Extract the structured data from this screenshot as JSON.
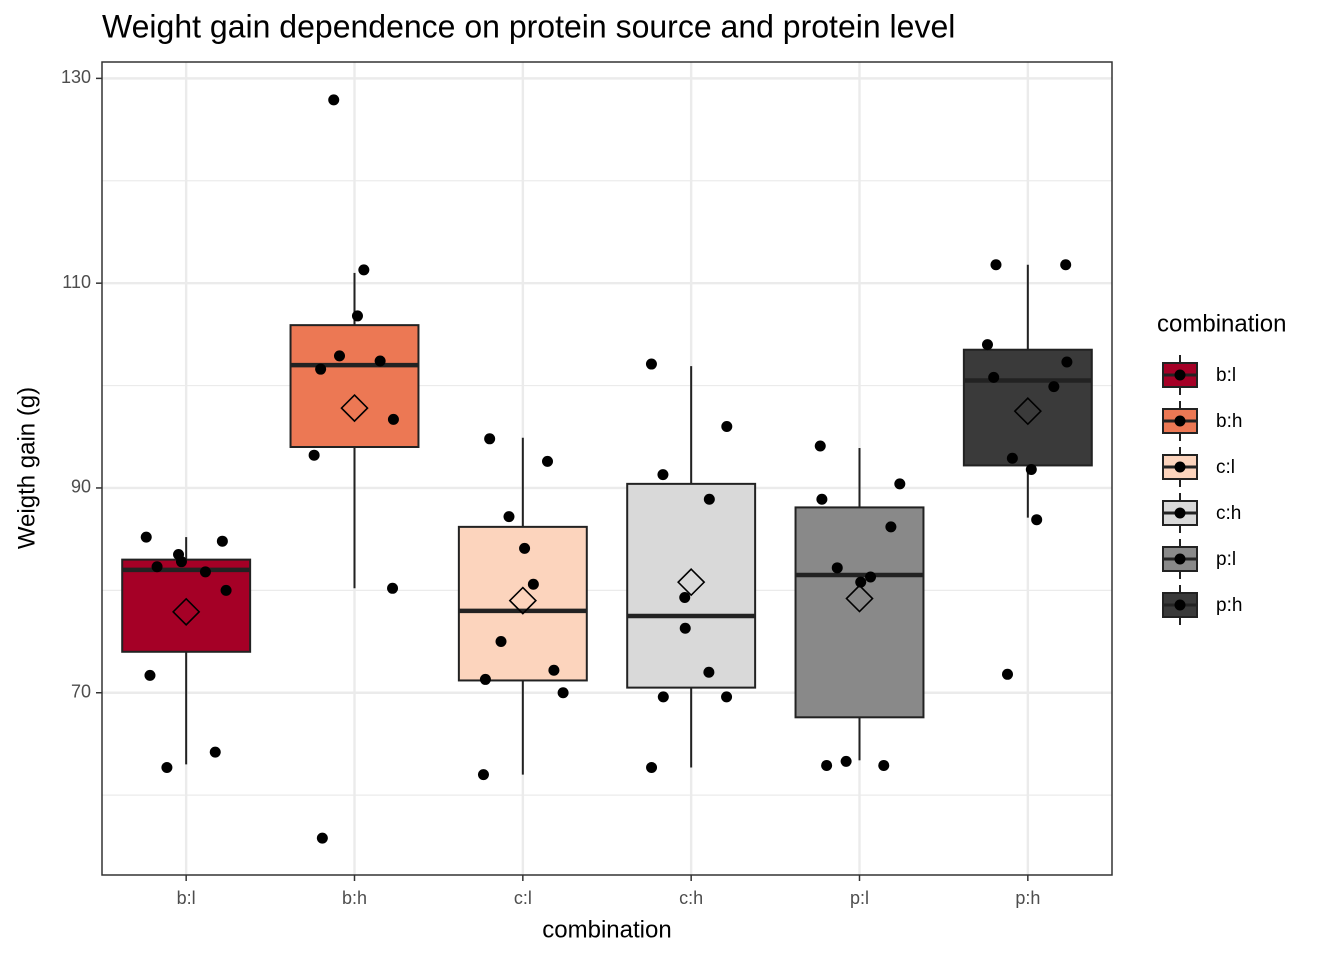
{
  "chart_data": {
    "type": "boxplot",
    "title": "Weight gain dependence on protein source and protein level",
    "x_label": "combination",
    "y_label": "Weigth gain (g)",
    "legend_title": "combination",
    "legend_position": "right",
    "grid": true,
    "categories": [
      "b:l",
      "b:h",
      "c:l",
      "c:h",
      "p:l",
      "p:h"
    ],
    "ylim": [
      52.2,
      131.6
    ],
    "yticks": [
      70,
      90,
      110,
      130
    ],
    "minor_yticks": [
      60,
      80,
      100,
      120
    ],
    "series": [
      {
        "name": "b:l",
        "color": "#a50026",
        "whisker_low": 63.0,
        "q1": 74.0,
        "median": 82.0,
        "q3": 83.0,
        "whisker_high": 85.2,
        "mean": 77.9,
        "points": [
          82.8,
          83.5,
          81.8,
          82.3,
          84.8,
          85.2,
          80.0,
          71.7,
          64.2,
          62.7
        ]
      },
      {
        "name": "b:h",
        "color": "#ec7854",
        "whisker_low": 80.2,
        "q1": 94.0,
        "median": 102.0,
        "q3": 105.9,
        "whisker_high": 111.0,
        "mean": 97.8,
        "points": [
          127.9,
          111.3,
          106.8,
          102.9,
          102.4,
          101.6,
          96.7,
          93.2,
          80.2,
          55.8
        ]
      },
      {
        "name": "c:l",
        "color": "#fcd4bd",
        "whisker_low": 62.0,
        "q1": 71.2,
        "median": 78.0,
        "q3": 86.2,
        "whisker_high": 94.9,
        "mean": 79.0,
        "points": [
          94.8,
          92.6,
          87.2,
          84.1,
          80.6,
          75.0,
          72.2,
          71.3,
          70.0,
          62.0
        ]
      },
      {
        "name": "c:h",
        "color": "#d9d9d9",
        "whisker_low": 62.7,
        "q1": 70.5,
        "median": 77.5,
        "q3": 90.4,
        "whisker_high": 101.9,
        "mean": 80.8,
        "points": [
          102.1,
          96.0,
          91.3,
          88.9,
          79.3,
          76.3,
          72.0,
          69.6,
          69.6,
          62.7
        ]
      },
      {
        "name": "p:l",
        "color": "#898989",
        "whisker_low": 63.4,
        "q1": 67.6,
        "median": 81.5,
        "q3": 88.1,
        "whisker_high": 93.9,
        "mean": 79.2,
        "points": [
          94.1,
          90.4,
          88.9,
          86.2,
          82.2,
          81.3,
          80.8,
          63.3,
          62.9,
          62.9
        ]
      },
      {
        "name": "p:h",
        "color": "#3a3a3a",
        "whisker_low": 87.1,
        "q1": 92.2,
        "median": 100.5,
        "q3": 103.5,
        "whisker_high": 111.8,
        "mean": 97.5,
        "points": [
          111.8,
          111.8,
          104.0,
          102.3,
          100.8,
          99.9,
          92.9,
          91.8,
          86.9,
          71.8
        ]
      }
    ]
  }
}
